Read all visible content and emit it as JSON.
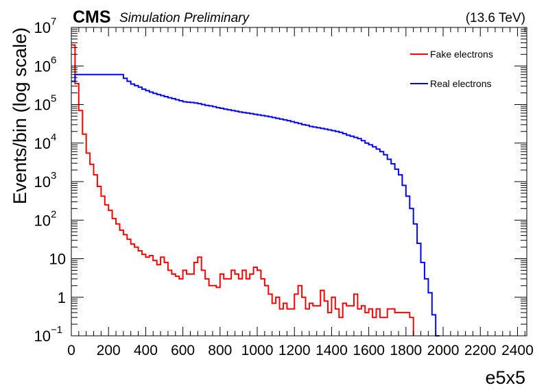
{
  "header": {
    "experiment": "CMS",
    "status": "Simulation Preliminary",
    "energy": "(13.6 TeV)"
  },
  "chart_data": {
    "type": "line",
    "xlabel": "e5x5",
    "ylabel": "Events/bin (log scale)",
    "xlim": [
      0,
      2450
    ],
    "ylim": [
      0.1,
      10000000
    ],
    "yscale": "log",
    "x_ticks": [
      "0",
      "200",
      "400",
      "600",
      "800",
      "1000",
      "1200",
      "1400",
      "1600",
      "1800",
      "2000",
      "2200",
      "2400"
    ],
    "x_tick_values": [
      0,
      200,
      400,
      600,
      800,
      1000,
      1200,
      1400,
      1600,
      1800,
      2000,
      2200,
      2400
    ],
    "y_ticks": [
      {
        "base": "10",
        "exp": "−1"
      },
      {
        "base": "1",
        "exp": ""
      },
      {
        "base": "10",
        "exp": ""
      },
      {
        "base": "10",
        "exp": "2"
      },
      {
        "base": "10",
        "exp": "3"
      },
      {
        "base": "10",
        "exp": "4"
      },
      {
        "base": "10",
        "exp": "5"
      },
      {
        "base": "10",
        "exp": "6"
      },
      {
        "base": "10",
        "exp": "7"
      }
    ],
    "y_tick_values": [
      0.1,
      1,
      10,
      100,
      1000,
      10000,
      100000,
      1000000,
      10000000
    ],
    "grid": false,
    "legend_position": "top-right",
    "bin_width": 20,
    "series": [
      {
        "name": "Fake electrons",
        "color": "#ff0000",
        "bins": [
          [
            0,
            3500000
          ],
          [
            20,
            350000
          ],
          [
            40,
            70000
          ],
          [
            60,
            17000
          ],
          [
            80,
            5500
          ],
          [
            100,
            2800
          ],
          [
            120,
            1500
          ],
          [
            140,
            750
          ],
          [
            160,
            420
          ],
          [
            180,
            250
          ],
          [
            200,
            180
          ],
          [
            220,
            110
          ],
          [
            240,
            80
          ],
          [
            260,
            55
          ],
          [
            280,
            42
          ],
          [
            300,
            32
          ],
          [
            320,
            24
          ],
          [
            340,
            20
          ],
          [
            360,
            16
          ],
          [
            380,
            13
          ],
          [
            400,
            11
          ],
          [
            420,
            12
          ],
          [
            440,
            9
          ],
          [
            460,
            7
          ],
          [
            480,
            11
          ],
          [
            500,
            8
          ],
          [
            520,
            5
          ],
          [
            540,
            4
          ],
          [
            560,
            3.5
          ],
          [
            580,
            3
          ],
          [
            600,
            5
          ],
          [
            620,
            4
          ],
          [
            640,
            4
          ],
          [
            660,
            8
          ],
          [
            680,
            11
          ],
          [
            700,
            5
          ],
          [
            720,
            3
          ],
          [
            740,
            2
          ],
          [
            760,
            2
          ],
          [
            780,
            1.8
          ],
          [
            800,
            4
          ],
          [
            820,
            3
          ],
          [
            840,
            3
          ],
          [
            860,
            5
          ],
          [
            880,
            4
          ],
          [
            900,
            3
          ],
          [
            920,
            5
          ],
          [
            940,
            3
          ],
          [
            960,
            4
          ],
          [
            980,
            6
          ],
          [
            1000,
            5
          ],
          [
            1020,
            3
          ],
          [
            1040,
            2
          ],
          [
            1060,
            1.2
          ],
          [
            1080,
            0.7
          ],
          [
            1100,
            1
          ],
          [
            1120,
            0.5
          ],
          [
            1140,
            0.7
          ],
          [
            1160,
            0.5
          ],
          [
            1180,
            0.5
          ],
          [
            1200,
            1.2
          ],
          [
            1220,
            2
          ],
          [
            1240,
            1
          ],
          [
            1260,
            0.5
          ],
          [
            1280,
            0.7
          ],
          [
            1300,
            0.6
          ],
          [
            1320,
            0.6
          ],
          [
            1340,
            1.5
          ],
          [
            1360,
            0.8
          ],
          [
            1380,
            0.4
          ],
          [
            1400,
            1
          ],
          [
            1420,
            0.5
          ],
          [
            1440,
            0.3
          ],
          [
            1460,
            0.7
          ],
          [
            1480,
            0.6
          ],
          [
            1500,
            0.6
          ],
          [
            1520,
            1.2
          ],
          [
            1540,
            0.5
          ],
          [
            1560,
            0.6
          ],
          [
            1580,
            0.4
          ],
          [
            1600,
            0.5
          ],
          [
            1620,
            0.3
          ],
          [
            1640,
            0.5
          ],
          [
            1660,
            0.3
          ],
          [
            1680,
            0.3
          ],
          [
            1700,
            0.5
          ],
          [
            1720,
            0.5
          ],
          [
            1740,
            0.4
          ],
          [
            1760,
            0.4
          ],
          [
            1780,
            0.4
          ],
          [
            1800,
            0.4
          ],
          [
            1820,
            0.3
          ]
        ]
      },
      {
        "name": "Real electrons",
        "color": "#0000ff",
        "bins": [
          [
            0,
            400000
          ],
          [
            20,
            600000
          ],
          [
            40,
            600000
          ],
          [
            60,
            600000
          ],
          [
            80,
            600000
          ],
          [
            100,
            600000
          ],
          [
            120,
            600000
          ],
          [
            140,
            600000
          ],
          [
            160,
            600000
          ],
          [
            180,
            600000
          ],
          [
            200,
            600000
          ],
          [
            220,
            600000
          ],
          [
            240,
            600000
          ],
          [
            260,
            600000
          ],
          [
            280,
            480000
          ],
          [
            300,
            400000
          ],
          [
            320,
            340000
          ],
          [
            340,
            310000
          ],
          [
            360,
            280000
          ],
          [
            380,
            250000
          ],
          [
            400,
            230000
          ],
          [
            420,
            210000
          ],
          [
            440,
            195000
          ],
          [
            460,
            182000
          ],
          [
            480,
            170000
          ],
          [
            500,
            160000
          ],
          [
            520,
            150000
          ],
          [
            540,
            142000
          ],
          [
            560,
            133000
          ],
          [
            580,
            125000
          ],
          [
            600,
            118000
          ],
          [
            620,
            115000
          ],
          [
            640,
            113000
          ],
          [
            660,
            110000
          ],
          [
            680,
            105000
          ],
          [
            700,
            100000
          ],
          [
            720,
            95000
          ],
          [
            740,
            92000
          ],
          [
            760,
            88000
          ],
          [
            780,
            83000
          ],
          [
            800,
            80000
          ],
          [
            820,
            76000
          ],
          [
            840,
            73000
          ],
          [
            860,
            70000
          ],
          [
            880,
            67000
          ],
          [
            900,
            64000
          ],
          [
            920,
            62000
          ],
          [
            940,
            60000
          ],
          [
            960,
            58000
          ],
          [
            980,
            56000
          ],
          [
            1000,
            54000
          ],
          [
            1020,
            52000
          ],
          [
            1040,
            50000
          ],
          [
            1060,
            48000
          ],
          [
            1080,
            46000
          ],
          [
            1100,
            44000
          ],
          [
            1120,
            42000
          ],
          [
            1140,
            40000
          ],
          [
            1160,
            38000
          ],
          [
            1180,
            36000
          ],
          [
            1200,
            34000
          ],
          [
            1220,
            32000
          ],
          [
            1240,
            30000
          ],
          [
            1260,
            29000
          ],
          [
            1280,
            27000
          ],
          [
            1300,
            26000
          ],
          [
            1320,
            25000
          ],
          [
            1340,
            24000
          ],
          [
            1360,
            23000
          ],
          [
            1380,
            22000
          ],
          [
            1400,
            21000
          ],
          [
            1420,
            20000
          ],
          [
            1440,
            19000
          ],
          [
            1460,
            17500
          ],
          [
            1480,
            16000
          ],
          [
            1500,
            15000
          ],
          [
            1520,
            14000
          ],
          [
            1540,
            13000
          ],
          [
            1560,
            11500
          ],
          [
            1580,
            10000
          ],
          [
            1600,
            9000
          ],
          [
            1620,
            8000
          ],
          [
            1640,
            7000
          ],
          [
            1660,
            6000
          ],
          [
            1680,
            5000
          ],
          [
            1700,
            3800
          ],
          [
            1720,
            2900
          ],
          [
            1740,
            2100
          ],
          [
            1760,
            1500
          ],
          [
            1780,
            800
          ],
          [
            1800,
            420
          ],
          [
            1820,
            200
          ],
          [
            1840,
            80
          ],
          [
            1860,
            25
          ],
          [
            1880,
            8
          ],
          [
            1900,
            3
          ],
          [
            1920,
            1.3
          ],
          [
            1940,
            0.35
          ],
          [
            1960,
            0.1
          ]
        ]
      }
    ]
  }
}
